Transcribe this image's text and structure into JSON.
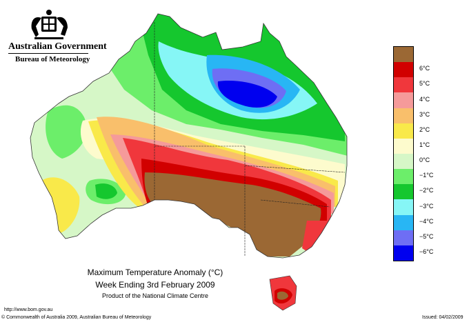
{
  "header": {
    "government": "Australian Government",
    "bureau": "Bureau of Meteorology"
  },
  "map": {
    "title_line1": "Maximum Temperature Anomaly (°C)",
    "title_line2": "Week Ending 3rd February 2009",
    "subtitle": "Product of the National Climate Centre"
  },
  "legend": {
    "items": [
      {
        "label": "",
        "color": "#9b6834"
      },
      {
        "label": "6°C",
        "color": "#d10000"
      },
      {
        "label": "5°C",
        "color": "#f0373c"
      },
      {
        "label": "4°C",
        "color": "#f59a9a"
      },
      {
        "label": "3°C",
        "color": "#f9bf6b"
      },
      {
        "label": "2°C",
        "color": "#f9e94a"
      },
      {
        "label": "1°C",
        "color": "#fdfbcd"
      },
      {
        "label": "0°C",
        "color": "#d6f7c7"
      },
      {
        "label": "−1°C",
        "color": "#6cee6a"
      },
      {
        "label": "−2°C",
        "color": "#15c72e"
      },
      {
        "label": "−3°C",
        "color": "#86f6f6"
      },
      {
        "label": "−4°C",
        "color": "#28b6f4"
      },
      {
        "label": "−5°C",
        "color": "#6e6ef4"
      },
      {
        "label": "−6°C",
        "color": "#0000ef"
      }
    ]
  },
  "footer": {
    "url": "http://www.bom.gov.au",
    "copyright": "© Commonwealth of Australia 2009, Australian Bureau of Meteorology",
    "issued": "Issued: 04/02/2009"
  }
}
